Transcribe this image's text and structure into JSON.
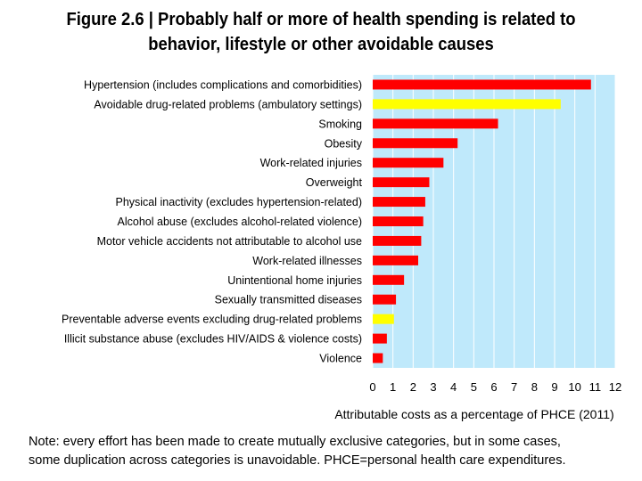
{
  "title_lines": [
    "Figure 2.6 | Probably half or more of health spending is related to",
    "behavior, lifestyle or other avoidable causes"
  ],
  "note_lines": [
    "Note:  every effort has been made to create mutually exclusive categories, but in some cases,",
    "some duplication across categories is unavoidable. PHCE=personal health care expenditures."
  ],
  "colors": {
    "plot_bg": "#bfe9fb",
    "grid": "#ffffff",
    "bar_red": "#ff0000",
    "bar_yellow": "#ffff00"
  },
  "chart_data": {
    "type": "bar",
    "orientation": "horizontal",
    "title": "Figure 2.6 | Probably half or more of health spending is related to behavior, lifestyle or other avoidable causes",
    "xlabel": "Attributable costs as a percentage of PHCE (2011)",
    "ylabel": "",
    "xlim": [
      0,
      12
    ],
    "xticks": [
      "0",
      "1",
      "2",
      "3",
      "4",
      "5",
      "6",
      "7",
      "8",
      "9",
      "10",
      "11",
      "12"
    ],
    "grid": true,
    "categories": [
      "Hypertension (includes complications and comorbidities)",
      "Avoidable drug-related problems (ambulatory settings)",
      "Smoking",
      "Obesity",
      "Work-related injuries",
      "Overweight",
      "Physical inactivity (excludes hypertension-related)",
      "Alcohol abuse (excludes alcohol-related violence)",
      "Motor vehicle accidents not attributable to alcohol use",
      "Work-related illnesses",
      "Unintentional home injuries",
      "Sexually transmitted diseases",
      "Preventable adverse events excluding drug-related problems",
      "Illicit substance abuse (excludes HIV/AIDS & violence costs)",
      "Violence"
    ],
    "values": [
      10.8,
      9.3,
      6.2,
      4.2,
      3.5,
      2.8,
      2.6,
      2.5,
      2.4,
      2.25,
      1.55,
      1.15,
      1.05,
      0.7,
      0.5
    ],
    "bar_colors": [
      "red",
      "yellow",
      "red",
      "red",
      "red",
      "red",
      "red",
      "red",
      "red",
      "red",
      "red",
      "red",
      "yellow",
      "red",
      "red"
    ]
  }
}
